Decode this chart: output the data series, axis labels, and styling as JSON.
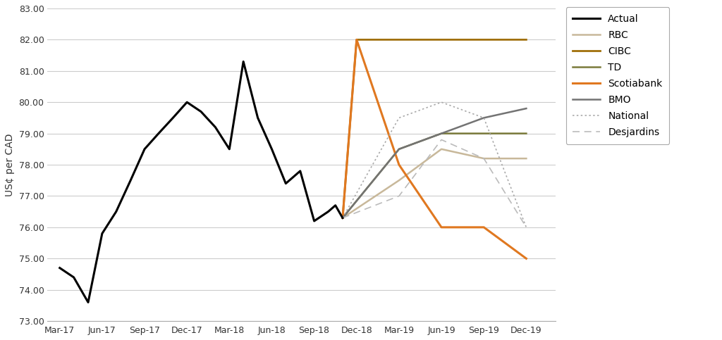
{
  "ylabel": "US¢ per CAD",
  "background_color": "#ffffff",
  "ylim": [
    73.0,
    83.0
  ],
  "yticks": [
    73.0,
    74.0,
    75.0,
    76.0,
    77.0,
    78.0,
    79.0,
    80.0,
    81.0,
    82.0,
    83.0
  ],
  "xtick_labels": [
    "Mar-17",
    "Jun-17",
    "Sep-17",
    "Dec-17",
    "Mar-18",
    "Jun-18",
    "Sep-18",
    "Dec-18",
    "Mar-19",
    "Jun-19",
    "Sep-19",
    "Dec-19"
  ],
  "xtick_positions": [
    0,
    1,
    2,
    3,
    4,
    5,
    6,
    7,
    8,
    9,
    10,
    11
  ],
  "actual_x": [
    0,
    0.33,
    0.67,
    1,
    1.33,
    1.67,
    2,
    2.33,
    2.67,
    3,
    3.33,
    3.67,
    4,
    4.33,
    4.67,
    5,
    5.33,
    5.67,
    6,
    6.33,
    6.5,
    6.67
  ],
  "actual_y": [
    74.7,
    74.4,
    73.6,
    75.8,
    76.5,
    77.5,
    78.5,
    79.0,
    79.5,
    80.0,
    79.7,
    79.2,
    78.5,
    81.3,
    79.5,
    78.5,
    77.4,
    77.8,
    76.2,
    76.5,
    76.7,
    76.3
  ],
  "actual_color": "#000000",
  "actual_linewidth": 2.2,
  "forecasts": [
    {
      "name": "RBC",
      "color": "#c8b89a",
      "linewidth": 1.8,
      "linestyle": "solid",
      "x": [
        6.67,
        8,
        9,
        10,
        11
      ],
      "y": [
        76.3,
        77.5,
        78.5,
        78.2,
        78.2
      ]
    },
    {
      "name": "CIBC",
      "color": "#a0700a",
      "linewidth": 2.0,
      "linestyle": "solid",
      "x": [
        6.67,
        7,
        8,
        9,
        10,
        11
      ],
      "y": [
        76.3,
        82.0,
        82.0,
        82.0,
        82.0,
        82.0
      ]
    },
    {
      "name": "TD",
      "color": "#7a7a3a",
      "linewidth": 1.8,
      "linestyle": "solid",
      "x": [
        6.67,
        8,
        9,
        10,
        11
      ],
      "y": [
        76.3,
        78.5,
        79.0,
        79.0,
        79.0
      ]
    },
    {
      "name": "Scotiabank",
      "color": "#e07820",
      "linewidth": 2.2,
      "linestyle": "solid",
      "x": [
        6.67,
        7,
        8,
        9,
        10,
        11
      ],
      "y": [
        76.3,
        82.0,
        78.0,
        76.0,
        76.0,
        75.0
      ]
    },
    {
      "name": "BMO",
      "color": "#737373",
      "linewidth": 1.8,
      "linestyle": "solid",
      "x": [
        6.67,
        8,
        9,
        10,
        11
      ],
      "y": [
        76.3,
        78.5,
        79.0,
        79.5,
        79.8
      ]
    },
    {
      "name": "National",
      "color": "#aaaaaa",
      "linewidth": 1.2,
      "linestyle": "dotted",
      "x": [
        6.67,
        8,
        9,
        10,
        11
      ],
      "y": [
        76.3,
        79.5,
        80.0,
        79.5,
        76.0
      ]
    },
    {
      "name": "Desjardins",
      "color": "#bbbbbb",
      "linewidth": 1.2,
      "linestyle": "dashed",
      "x": [
        6.67,
        8,
        9,
        10,
        11
      ],
      "y": [
        76.3,
        77.0,
        78.8,
        78.2,
        76.0
      ]
    }
  ],
  "grid_color": "#cccccc",
  "grid_linewidth": 0.8,
  "legend_order": [
    "Actual",
    "RBC",
    "CIBC",
    "TD",
    "Scotiabank",
    "BMO",
    "National",
    "Desjardins"
  ]
}
